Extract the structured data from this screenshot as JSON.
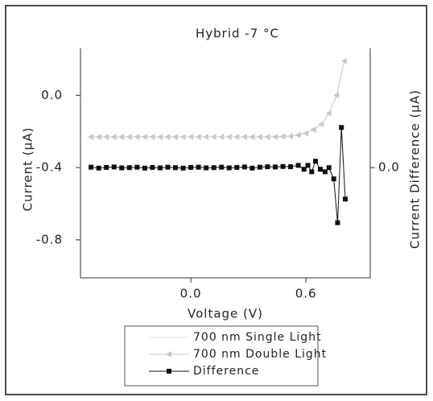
{
  "chart_data": {
    "type": "line",
    "title": "Hybrid -7 °C",
    "x_label": "Voltage (V)",
    "y_label": "Current (µA)",
    "y2_label": "Current Difference (µA)",
    "xlim": [
      -0.575,
      0.935
    ],
    "ylim": [
      -1.01,
      0.26
    ],
    "y2lim": [
      -0.48,
      0.52
    ],
    "xticks": [
      {
        "value": 0,
        "label": "0.0"
      },
      {
        "value": 0.6,
        "label": "0.6"
      }
    ],
    "yticks": [
      {
        "value": 0,
        "label": "0.0"
      },
      {
        "value": -0.4,
        "label": "-0.4"
      },
      {
        "value": -0.8,
        "label": "-0.8"
      }
    ],
    "y2ticks": [
      {
        "value": 0,
        "label": "0.0"
      }
    ],
    "series": [
      {
        "name": "700 nm Single Light",
        "color": "#e6e6e6",
        "marker": "none",
        "x": [
          -0.52,
          -0.48,
          -0.44,
          -0.4,
          -0.36,
          -0.32,
          -0.28,
          -0.24,
          -0.2,
          -0.16,
          -0.12,
          -0.08,
          -0.04,
          0,
          0.04,
          0.08,
          0.12,
          0.16,
          0.2,
          0.24,
          0.28,
          0.32,
          0.36,
          0.4,
          0.44,
          0.48,
          0.52,
          0.56,
          0.6,
          0.64,
          0.68,
          0.72,
          0.76,
          0.8
        ],
        "values": [
          -0.23,
          -0.23,
          -0.23,
          -0.23,
          -0.23,
          -0.23,
          -0.23,
          -0.23,
          -0.23,
          -0.23,
          -0.23,
          -0.23,
          -0.23,
          -0.23,
          -0.23,
          -0.23,
          -0.23,
          -0.23,
          -0.23,
          -0.23,
          -0.23,
          -0.23,
          -0.23,
          -0.23,
          -0.23,
          -0.228,
          -0.225,
          -0.22,
          -0.21,
          -0.19,
          -0.16,
          -0.1,
          0.0,
          0.19
        ]
      },
      {
        "name": "700 nm Double Light",
        "color": "#c8c8c8",
        "marker": "triangle",
        "x": [
          -0.52,
          -0.48,
          -0.44,
          -0.4,
          -0.36,
          -0.32,
          -0.28,
          -0.24,
          -0.2,
          -0.16,
          -0.12,
          -0.08,
          -0.04,
          0,
          0.04,
          0.08,
          0.12,
          0.16,
          0.2,
          0.24,
          0.28,
          0.32,
          0.36,
          0.4,
          0.44,
          0.48,
          0.52,
          0.56,
          0.6,
          0.64,
          0.68,
          0.72,
          0.76,
          0.8
        ],
        "values": [
          -0.23,
          -0.23,
          -0.23,
          -0.23,
          -0.23,
          -0.23,
          -0.23,
          -0.23,
          -0.23,
          -0.23,
          -0.23,
          -0.23,
          -0.23,
          -0.23,
          -0.23,
          -0.23,
          -0.23,
          -0.23,
          -0.23,
          -0.23,
          -0.23,
          -0.23,
          -0.23,
          -0.23,
          -0.23,
          -0.228,
          -0.225,
          -0.22,
          -0.21,
          -0.19,
          -0.16,
          -0.1,
          0.0,
          0.19
        ]
      },
      {
        "name": "Difference",
        "color": "#111111",
        "marker": "square",
        "axis": "y2",
        "x": [
          -0.52,
          -0.48,
          -0.44,
          -0.4,
          -0.36,
          -0.32,
          -0.28,
          -0.24,
          -0.2,
          -0.16,
          -0.12,
          -0.08,
          -0.04,
          0,
          0.04,
          0.08,
          0.12,
          0.16,
          0.2,
          0.24,
          0.28,
          0.32,
          0.36,
          0.4,
          0.44,
          0.48,
          0.52,
          0.56,
          0.59,
          0.61,
          0.63,
          0.65,
          0.675,
          0.7,
          0.72,
          0.745,
          0.765,
          0.785,
          0.805
        ],
        "values": [
          0.002,
          -0.002,
          0.001,
          0.003,
          -0.001,
          0.0,
          0.002,
          -0.002,
          0.001,
          -0.001,
          0.002,
          0.0,
          -0.002,
          0.001,
          0.002,
          -0.001,
          0.0,
          0.002,
          -0.001,
          0.001,
          0.003,
          -0.002,
          0.002,
          0.004,
          0.003,
          0.005,
          0.004,
          0.01,
          -0.007,
          0.01,
          -0.018,
          0.028,
          -0.007,
          -0.018,
          0.0,
          -0.049,
          -0.24,
          0.175,
          -0.137
        ]
      }
    ]
  }
}
